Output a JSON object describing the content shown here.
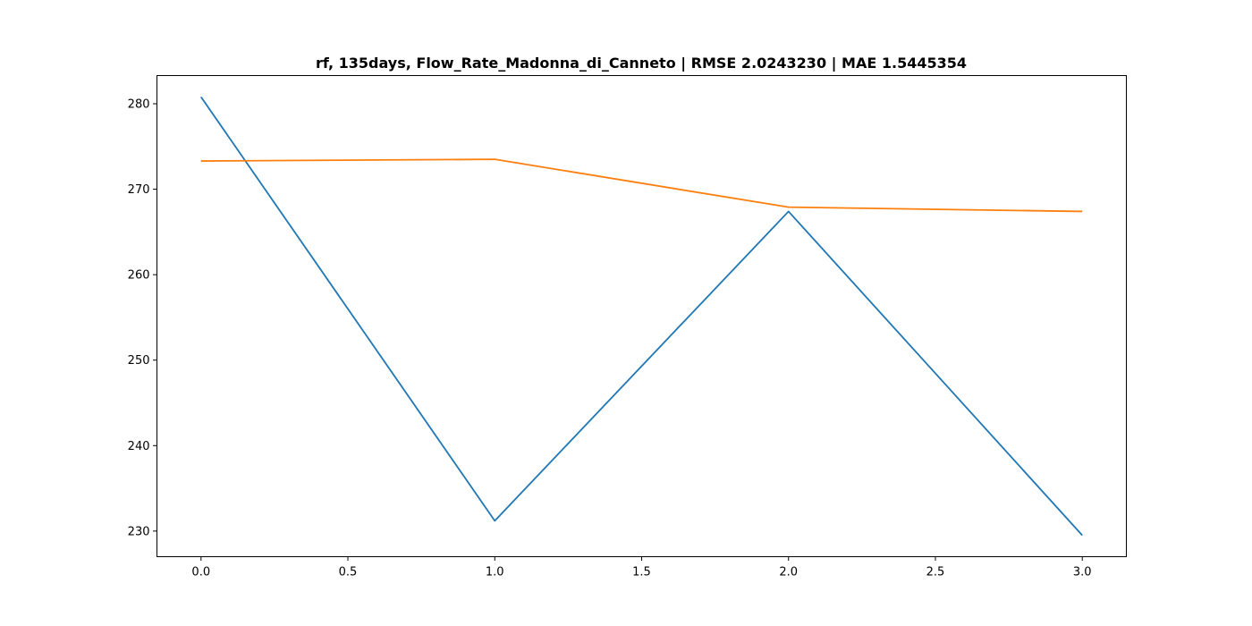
{
  "chart_data": {
    "type": "line",
    "title": "rf, 135days, Flow_Rate_Madonna_di_Canneto | RMSE 2.0243230 | MAE 1.5445354",
    "xlabel": "",
    "ylabel": "",
    "xlim": [
      -0.15,
      3.15
    ],
    "ylim": [
      227,
      283.3
    ],
    "x_ticks": [
      0.0,
      0.5,
      1.0,
      1.5,
      2.0,
      2.5,
      3.0
    ],
    "x_tick_labels": [
      "0.0",
      "0.5",
      "1.0",
      "1.5",
      "2.0",
      "2.5",
      "3.0"
    ],
    "y_ticks": [
      230,
      240,
      250,
      260,
      270,
      280
    ],
    "y_tick_labels": [
      "230",
      "240",
      "250",
      "260",
      "270",
      "280"
    ],
    "grid": false,
    "series": [
      {
        "x": [
          0,
          1,
          2,
          3
        ],
        "values": [
          280.8,
          231.2,
          267.4,
          229.5
        ],
        "color": "#1f77b4"
      },
      {
        "x": [
          0,
          1,
          2,
          3
        ],
        "values": [
          273.3,
          273.5,
          267.9,
          267.4
        ],
        "color": "#ff7f0e"
      }
    ]
  }
}
